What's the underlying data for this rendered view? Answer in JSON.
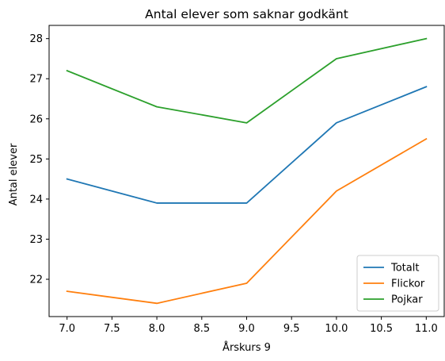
{
  "chart_data": {
    "type": "line",
    "title": "Antal elever som saknar godkänt",
    "xlabel": "Årskurs 9",
    "ylabel": "Antal elever",
    "x": [
      7,
      8,
      9,
      10,
      11
    ],
    "xlim": [
      6.8,
      11.2
    ],
    "ylim": [
      21.07,
      28.33
    ],
    "xticks": [
      7.0,
      7.5,
      8.0,
      8.5,
      9.0,
      9.5,
      10.0,
      10.5,
      11.0
    ],
    "yticks": [
      22,
      23,
      24,
      25,
      26,
      27,
      28
    ],
    "grid": false,
    "legend_position": "lower right",
    "series": [
      {
        "name": "Totalt",
        "color": "#1f77b4",
        "values": [
          24.5,
          23.9,
          23.9,
          25.9,
          26.8
        ]
      },
      {
        "name": "Flickor",
        "color": "#ff7f0e",
        "values": [
          21.7,
          21.4,
          21.9,
          24.2,
          25.5
        ]
      },
      {
        "name": "Pojkar",
        "color": "#2ca02c",
        "values": [
          27.2,
          26.3,
          25.9,
          27.5,
          28.0
        ]
      }
    ]
  }
}
